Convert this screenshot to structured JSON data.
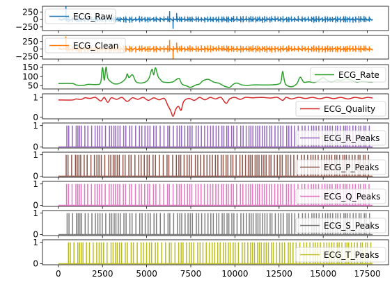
{
  "chart_data": {
    "type": "line",
    "x_ticks": [
      0,
      2500,
      5000,
      7500,
      10000,
      12500,
      15000,
      17500
    ],
    "x_range": [
      -900,
      18700
    ],
    "signal_length": 17800,
    "panels": [
      {
        "name": "ECG_Raw",
        "color": "#1f77b4",
        "kind": "ecg",
        "amp": 60,
        "ylim": [
          -370,
          440
        ],
        "yticks": [
          -250,
          0,
          250
        ],
        "ytick_labels": [
          "−250",
          "0",
          "250"
        ],
        "legend_loc": "upper left",
        "bursts": [
          [
            430,
            470
          ],
          [
            6300,
            260
          ],
          [
            6500,
            -300
          ],
          [
            6700,
            200
          ]
        ]
      },
      {
        "name": "ECG_Clean",
        "color": "#ff7f0e",
        "kind": "ecg",
        "amp": 65,
        "ylim": [
          -330,
          450
        ],
        "yticks": [
          -250,
          0,
          250
        ],
        "ytick_labels": [
          "−250",
          "0",
          "250"
        ],
        "legend_loc": "upper left",
        "bursts": [
          [
            430,
            400
          ],
          [
            6300,
            290
          ],
          [
            6500,
            -330
          ],
          [
            6700,
            200
          ]
        ]
      },
      {
        "name": "ECG_Rate",
        "color": "#2ca02c",
        "kind": "rate",
        "ylim": [
          33,
          165
        ],
        "yticks": [
          50,
          100,
          150
        ],
        "ytick_labels": [
          "50",
          "100",
          "150"
        ],
        "legend_loc": "upper right",
        "points": [
          [
            0,
            62
          ],
          [
            800,
            62
          ],
          [
            1000,
            55
          ],
          [
            1400,
            52
          ],
          [
            1700,
            58
          ],
          [
            2200,
            57
          ],
          [
            2400,
            70
          ],
          [
            2500,
            150
          ],
          [
            2600,
            80
          ],
          [
            2700,
            152
          ],
          [
            2800,
            92
          ],
          [
            3000,
            70
          ],
          [
            3200,
            60
          ],
          [
            3500,
            65
          ],
          [
            3800,
            88
          ],
          [
            3900,
            115
          ],
          [
            4000,
            95
          ],
          [
            4200,
            110
          ],
          [
            4400,
            72
          ],
          [
            4700,
            65
          ],
          [
            5000,
            75
          ],
          [
            5150,
            95
          ],
          [
            5300,
            140
          ],
          [
            5400,
            110
          ],
          [
            5500,
            148
          ],
          [
            5650,
            100
          ],
          [
            5800,
            82
          ],
          [
            5900,
            72
          ],
          [
            6200,
            68
          ],
          [
            6500,
            72
          ],
          [
            6700,
            85
          ],
          [
            6850,
            90
          ],
          [
            7000,
            60
          ],
          [
            7300,
            48
          ],
          [
            7500,
            42
          ],
          [
            7800,
            55
          ],
          [
            8000,
            60
          ],
          [
            8200,
            78
          ],
          [
            8500,
            85
          ],
          [
            8800,
            70
          ],
          [
            9100,
            64
          ],
          [
            9400,
            48
          ],
          [
            9700,
            42
          ],
          [
            9900,
            58
          ],
          [
            10100,
            65
          ],
          [
            10400,
            55
          ],
          [
            10700,
            52
          ],
          [
            11000,
            55
          ],
          [
            11500,
            55
          ],
          [
            12000,
            55
          ],
          [
            12400,
            58
          ],
          [
            12600,
            70
          ],
          [
            12700,
            128
          ],
          [
            12800,
            80
          ],
          [
            12900,
            55
          ],
          [
            13200,
            45
          ],
          [
            13500,
            60
          ],
          [
            13700,
            97
          ],
          [
            13900,
            70
          ],
          [
            14200,
            72
          ],
          [
            14500,
            68
          ],
          [
            14800,
            82
          ],
          [
            15000,
            95
          ],
          [
            15200,
            80
          ],
          [
            15500,
            72
          ],
          [
            15800,
            82
          ],
          [
            16000,
            78
          ],
          [
            16300,
            88
          ],
          [
            16600,
            80
          ],
          [
            16900,
            70
          ],
          [
            17200,
            75
          ],
          [
            17500,
            72
          ],
          [
            17800,
            70
          ]
        ]
      },
      {
        "name": "ECG_Quality",
        "color": "#d62728",
        "kind": "quality",
        "ylim": [
          -0.08,
          1.18
        ],
        "yticks": [
          0,
          1
        ],
        "ytick_labels": [
          "0",
          "1"
        ],
        "legend_loc": "lower right",
        "points": [
          [
            0,
            0.87
          ],
          [
            800,
            0.87
          ],
          [
            1000,
            0.92
          ],
          [
            1300,
            0.9
          ],
          [
            1500,
            0.98
          ],
          [
            1800,
            0.95
          ],
          [
            2100,
            1.0
          ],
          [
            2400,
            0.82
          ],
          [
            2600,
            1.0
          ],
          [
            2800,
            0.75
          ],
          [
            3000,
            0.98
          ],
          [
            3300,
            0.9
          ],
          [
            3600,
            1.0
          ],
          [
            3900,
            0.8
          ],
          [
            4200,
            0.98
          ],
          [
            4500,
            0.9
          ],
          [
            4800,
            1.0
          ],
          [
            5100,
            0.85
          ],
          [
            5400,
            0.98
          ],
          [
            5700,
            0.88
          ],
          [
            6000,
            0.95
          ],
          [
            6200,
            0.6
          ],
          [
            6350,
            0.35
          ],
          [
            6500,
            0.05
          ],
          [
            6650,
            0.4
          ],
          [
            6800,
            0.55
          ],
          [
            6950,
            0.35
          ],
          [
            7100,
            0.8
          ],
          [
            7400,
            0.95
          ],
          [
            7700,
            0.85
          ],
          [
            8000,
            1.0
          ],
          [
            8300,
            0.88
          ],
          [
            8600,
            1.0
          ],
          [
            8900,
            0.92
          ],
          [
            9200,
            1.0
          ],
          [
            9500,
            0.7
          ],
          [
            9700,
            0.92
          ],
          [
            10000,
            1.0
          ],
          [
            10300,
            0.9
          ],
          [
            10600,
            1.0
          ],
          [
            11000,
            0.98
          ],
          [
            11500,
            1.0
          ],
          [
            12000,
            0.97
          ],
          [
            12400,
            1.0
          ],
          [
            12700,
            0.85
          ],
          [
            12900,
            1.0
          ],
          [
            13200,
            0.92
          ],
          [
            13600,
            1.0
          ],
          [
            14000,
            0.95
          ],
          [
            14400,
            1.0
          ],
          [
            14800,
            0.93
          ],
          [
            15200,
            1.0
          ],
          [
            15600,
            0.94
          ],
          [
            16000,
            1.0
          ],
          [
            16400,
            0.92
          ],
          [
            16800,
            1.0
          ],
          [
            17200,
            0.95
          ],
          [
            17500,
            1.0
          ],
          [
            17800,
            0.97
          ]
        ]
      },
      {
        "name": "ECG_R_Peaks",
        "color": "#9467bd",
        "kind": "peaks",
        "offset": 0,
        "ylim": [
          -0.05,
          1.12
        ],
        "yticks": [
          0,
          1
        ],
        "ytick_labels": [
          "0",
          "1"
        ],
        "legend_loc": "lower right"
      },
      {
        "name": "ECG_P_Peaks",
        "color": "#8c564b",
        "kind": "peaks",
        "offset": -40,
        "ylim": [
          -0.05,
          1.12
        ],
        "yticks": [
          0,
          1
        ],
        "ytick_labels": [
          "0",
          "1"
        ],
        "legend_loc": "lower right"
      },
      {
        "name": "ECG_Q_Peaks",
        "color": "#e377c2",
        "kind": "peaks",
        "offset": -15,
        "ylim": [
          -0.05,
          1.12
        ],
        "yticks": [
          0,
          1
        ],
        "ytick_labels": [
          "0",
          "1"
        ],
        "legend_loc": "lower right"
      },
      {
        "name": "ECG_S_Peaks",
        "color": "#7f7f7f",
        "kind": "peaks",
        "offset": 15,
        "ylim": [
          -0.05,
          1.12
        ],
        "yticks": [
          0,
          1
        ],
        "ytick_labels": [
          "0",
          "1"
        ],
        "legend_loc": "lower right"
      },
      {
        "name": "ECG_T_Peaks",
        "color": "#bcbd22",
        "kind": "peaks",
        "offset": 90,
        "ylim": [
          -0.05,
          1.12
        ],
        "yticks": [
          0,
          1
        ],
        "ytick_labels": [
          "0",
          "1"
        ],
        "legend_loc": "lower right"
      }
    ]
  }
}
